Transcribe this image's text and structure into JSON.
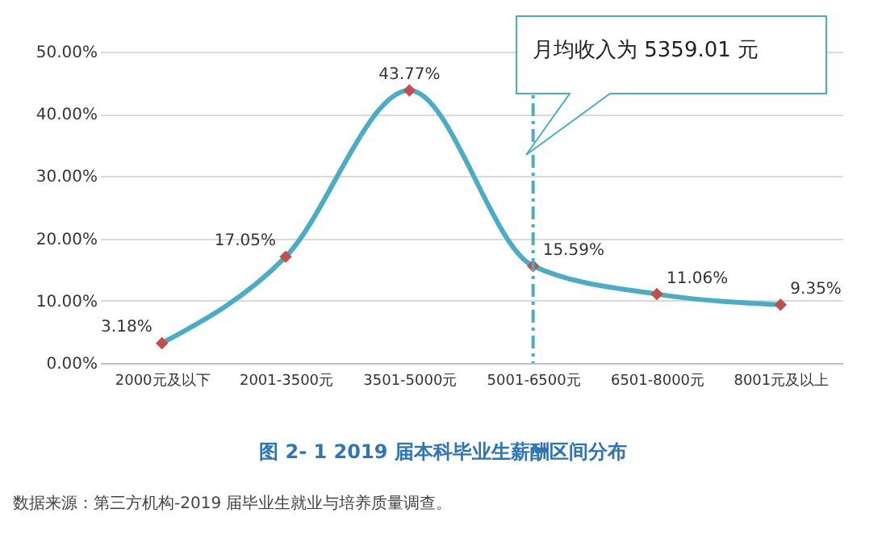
{
  "chart_data": {
    "type": "line",
    "title": "图 2- 1    2019 届本科毕业生薪酬区间分布",
    "categories": [
      "2000元及以下",
      "2001-3500元",
      "3501-5000元",
      "5001-6500元",
      "6501-8000元",
      "8001元及以上"
    ],
    "series": [
      {
        "color": "#4bacc6",
        "values": [
          3.18,
          17.05,
          43.77,
          15.59,
          11.06,
          9.35
        ],
        "value_labels": [
          "3.18%",
          "17.05%",
          "43.77%",
          "15.59%",
          "11.06%",
          "9.35%"
        ]
      }
    ],
    "ylim": [
      0,
      50
    ],
    "yticks": [
      {
        "value": 0,
        "label": "0.00%"
      },
      {
        "value": 10,
        "label": "10.00%"
      },
      {
        "value": 20,
        "label": "20.00%"
      },
      {
        "value": 30,
        "label": "30.00%"
      },
      {
        "value": 40,
        "label": "40.00%"
      },
      {
        "value": 50,
        "label": "50.00%"
      }
    ],
    "grid": "y",
    "marker": "diamond",
    "ref_lines": [
      {
        "axis": "x",
        "value": "5001-6500元",
        "label": "月均收入为 5359.01 元",
        "color": "#4bacc6",
        "line_style": "dashed"
      }
    ],
    "annotations": [
      "数据来源：第三方机构-2019 届毕业生就业与培养质量调查。"
    ]
  }
}
